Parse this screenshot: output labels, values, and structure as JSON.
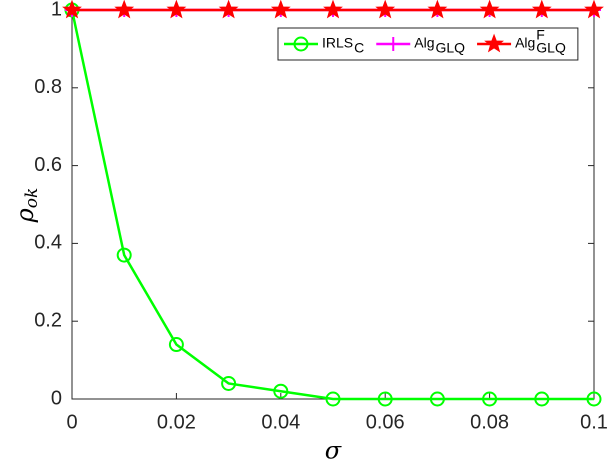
{
  "chart_data": {
    "type": "line",
    "xlabel": "σ",
    "ylabel": "ρ",
    "ylabel_subscript": "ok",
    "x": [
      0,
      0.01,
      0.02,
      0.03,
      0.04,
      0.05,
      0.06,
      0.07,
      0.08,
      0.09,
      0.1
    ],
    "series": [
      {
        "name": "IRLS",
        "subscript": "C",
        "color": "#00ff00",
        "marker": "circle",
        "values": [
          1,
          0.37,
          0.14,
          0.04,
          0.02,
          0,
          0,
          0,
          0,
          0,
          0
        ]
      },
      {
        "name": "Alg",
        "subscript": "GLQ",
        "color": "#ff00ff",
        "marker": "plus",
        "values": [
          1,
          1,
          1,
          1,
          1,
          1,
          1,
          1,
          1,
          1,
          1
        ]
      },
      {
        "name": "Alg",
        "subscript": "GLQ",
        "superscript": "F",
        "color": "#ff0000",
        "marker": "star",
        "values": [
          1,
          1,
          1,
          1,
          1,
          1,
          1,
          1,
          1,
          1,
          1
        ]
      }
    ],
    "xlim": [
      0,
      0.1
    ],
    "xticks": [
      0,
      0.02,
      0.04,
      0.06,
      0.08,
      0.1
    ],
    "ylim": [
      0,
      1
    ],
    "yticks": [
      0,
      0.2,
      0.4,
      0.6,
      0.8,
      1
    ],
    "grid": false,
    "legend": "top-right"
  }
}
